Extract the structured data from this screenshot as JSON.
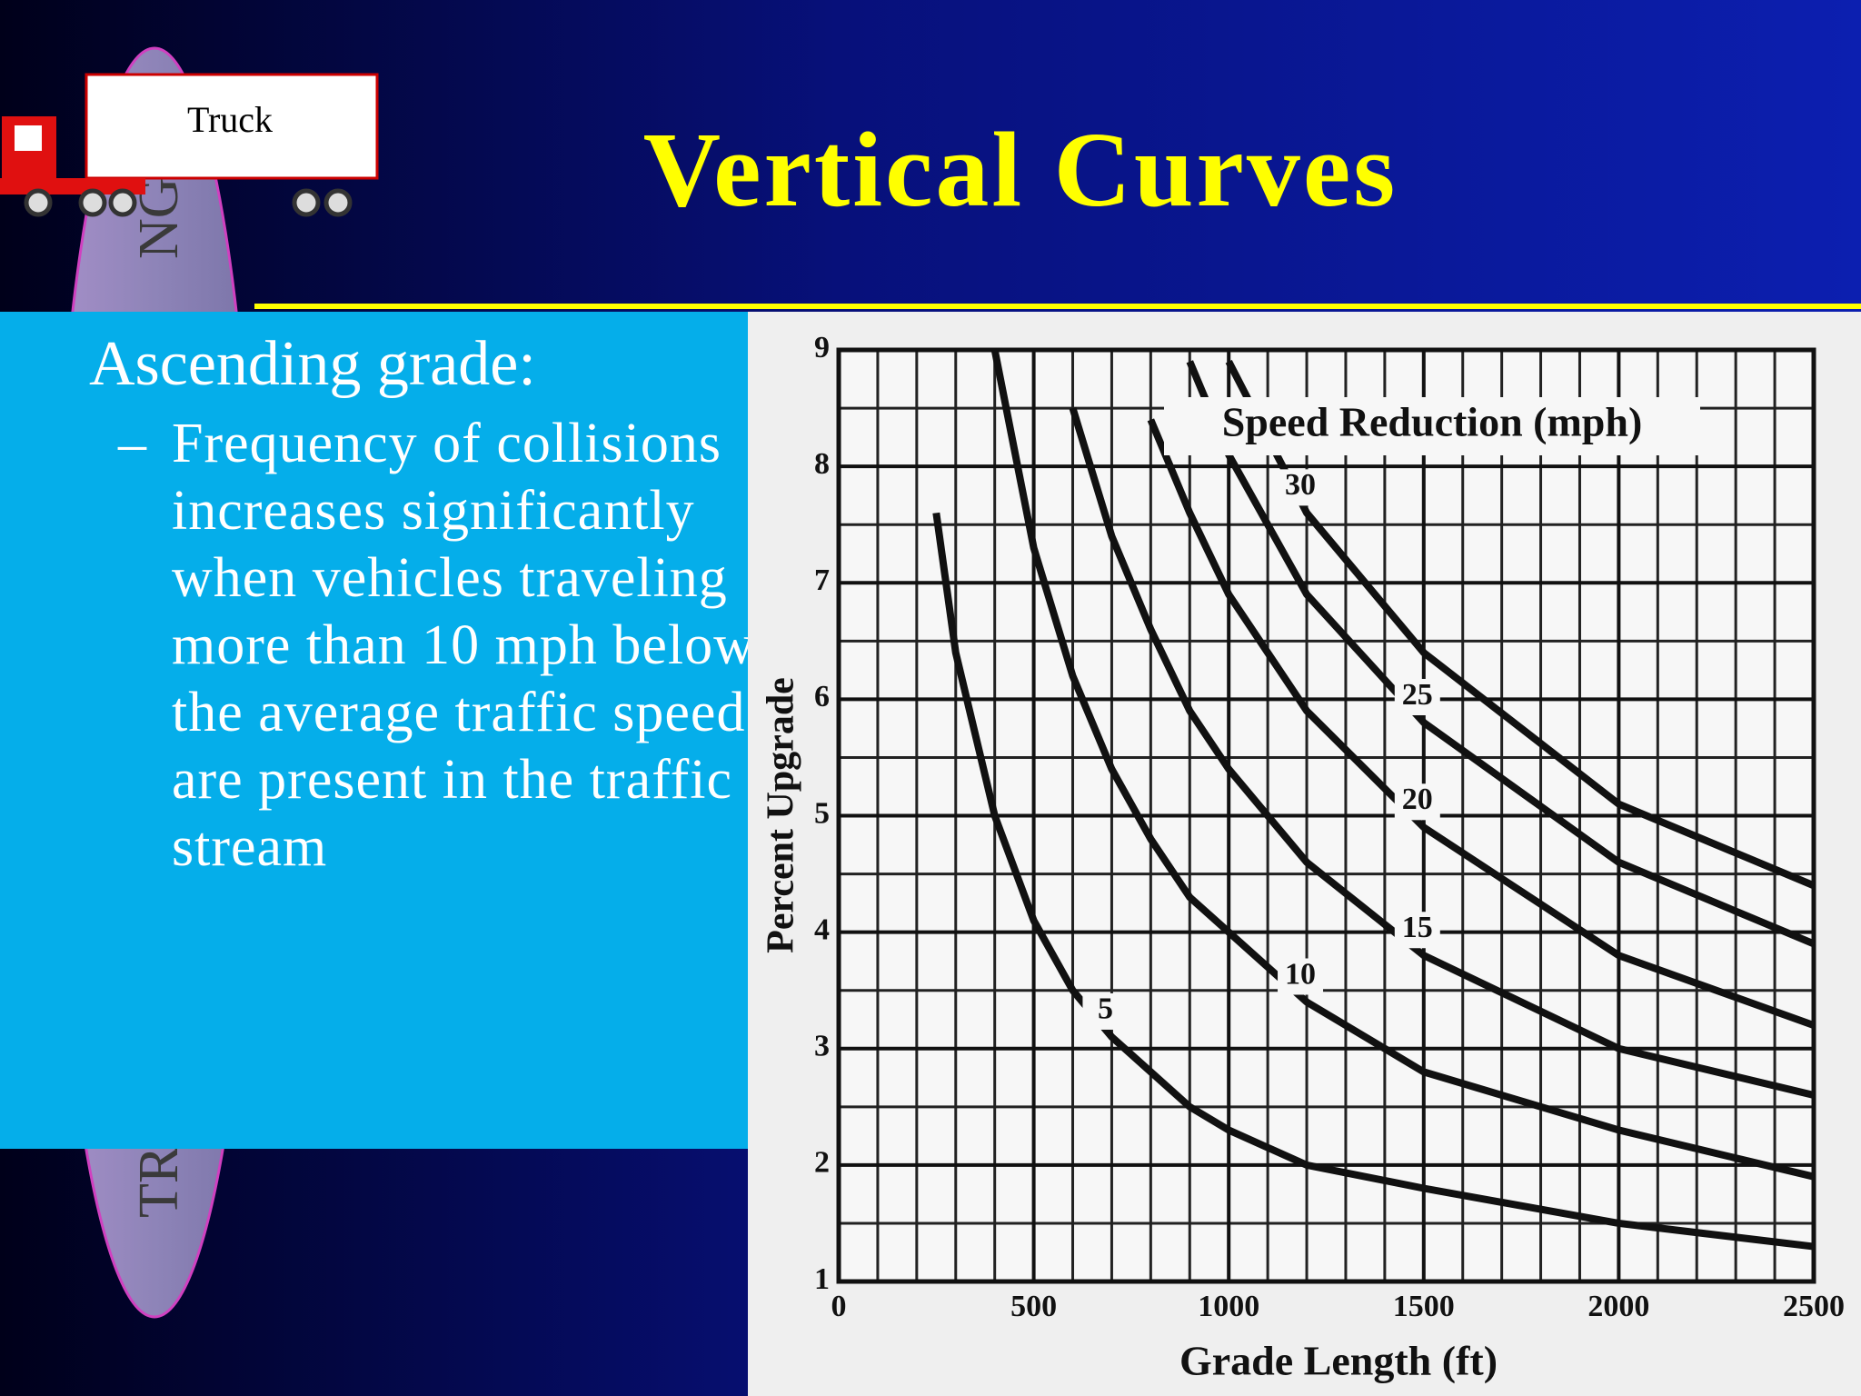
{
  "header": {
    "title": "Vertical Curves",
    "logo_label": "Truck",
    "side_text": [
      "NG -",
      "TR"
    ]
  },
  "content": {
    "heading": "Ascending grade:",
    "bullets": [
      "Frequency of collisions increases significantly when vehicles traveling more than 10 mph below the average traffic speed are present in the traffic stream"
    ]
  },
  "chart_data": {
    "type": "line",
    "legend_title": "Speed Reduction (mph)",
    "x_label": "Grade Length (ft)",
    "y_label": "Percent Upgrade",
    "x": [
      200,
      250,
      300,
      400,
      500,
      600,
      700,
      800,
      900,
      1000,
      1200,
      1500,
      2000,
      2500
    ],
    "series": [
      {
        "name": "5",
        "color": "#111111",
        "values": [
          null,
          7.6,
          6.4,
          5.0,
          4.1,
          3.5,
          3.1,
          2.8,
          2.5,
          2.3,
          2.0,
          1.8,
          1.5,
          1.3
        ]
      },
      {
        "name": "10",
        "color": "#111111",
        "values": [
          null,
          null,
          null,
          9.0,
          7.3,
          6.2,
          5.4,
          4.8,
          4.3,
          4.0,
          3.4,
          2.8,
          2.3,
          1.9
        ]
      },
      {
        "name": "15",
        "color": "#111111",
        "values": [
          null,
          null,
          null,
          null,
          null,
          8.5,
          7.4,
          6.6,
          5.9,
          5.4,
          4.6,
          3.8,
          3.0,
          2.6
        ]
      },
      {
        "name": "20",
        "color": "#111111",
        "values": [
          null,
          null,
          null,
          null,
          null,
          null,
          null,
          8.4,
          7.6,
          6.9,
          5.9,
          4.9,
          3.8,
          3.2
        ]
      },
      {
        "name": "25",
        "color": "#111111",
        "values": [
          null,
          null,
          null,
          null,
          null,
          null,
          null,
          null,
          8.9,
          8.1,
          6.9,
          5.8,
          4.6,
          3.9
        ]
      },
      {
        "name": "30",
        "color": "#111111",
        "values": [
          null,
          null,
          null,
          null,
          null,
          null,
          null,
          null,
          null,
          8.9,
          7.6,
          6.4,
          5.1,
          4.4
        ]
      }
    ],
    "xlim": [
      0,
      2500
    ],
    "ylim": [
      1,
      9
    ],
    "xticks": [
      0,
      500,
      1000,
      1500,
      2000,
      2500
    ],
    "yticks": [
      1,
      2,
      3,
      4,
      5,
      6,
      7,
      8,
      9
    ],
    "grid": true
  }
}
